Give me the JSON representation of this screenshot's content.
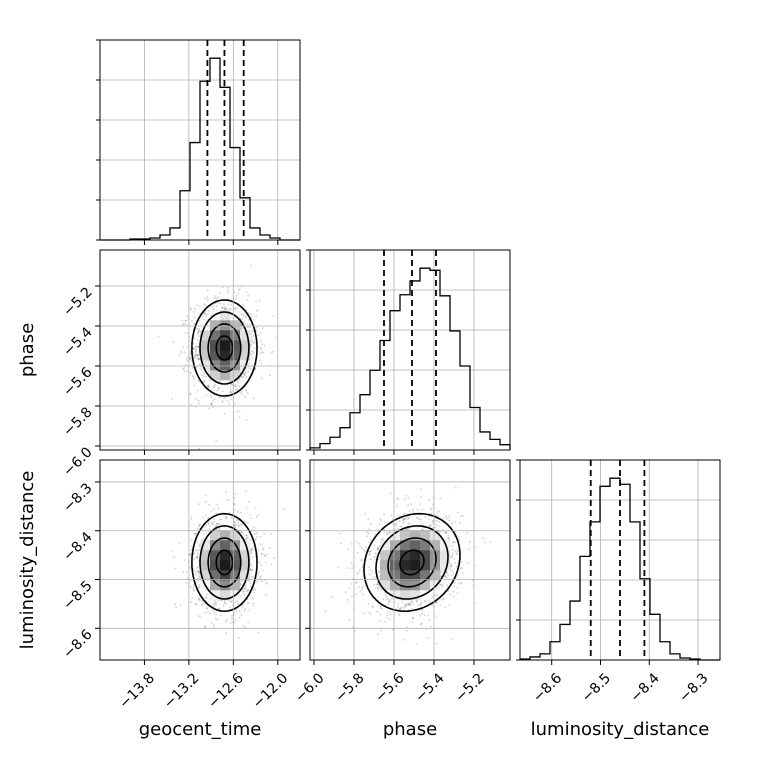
{
  "chart_data": {
    "type": "corner",
    "parameters": [
      "geocent_time",
      "phase",
      "luminosity_distance"
    ],
    "axes": {
      "geocent_time": {
        "label": "geocent_time",
        "range": [
          -14.4,
          -11.7
        ],
        "ticks": [
          -13.8,
          -13.2,
          -12.6,
          -12.0
        ],
        "tick_labels": [
          "−13.8",
          "−13.2",
          "−12.6",
          "−12.0"
        ]
      },
      "phase": {
        "label": "phase",
        "range": [
          -6.02,
          -5.02
        ],
        "ticks": [
          -6.0,
          -5.8,
          -5.6,
          -5.4,
          -5.2
        ],
        "tick_labels": [
          "−6.0",
          "−5.8",
          "−5.6",
          "−5.4",
          "−5.2"
        ]
      },
      "luminosity_distance": {
        "label": "luminosity_distance",
        "range": [
          -8.665,
          -8.255
        ],
        "ticks": [
          -8.6,
          -8.5,
          -8.4,
          -8.3
        ],
        "tick_labels": [
          "−8.6",
          "−8.5",
          "−8.4",
          "−8.3"
        ]
      }
    },
    "marginals": [
      {
        "parameter": "geocent_time",
        "quantiles": [
          -12.95,
          -12.72,
          -12.46
        ],
        "bin_edges": [
          -14.4,
          -14.265,
          -14.13,
          -13.995,
          -13.86,
          -13.725,
          -13.59,
          -13.455,
          -13.32,
          -13.185,
          -13.05,
          -12.915,
          -12.78,
          -12.645,
          -12.51,
          -12.375,
          -12.24,
          -12.105,
          -11.97,
          -11.835,
          -11.7
        ],
        "counts": [
          0,
          0,
          0,
          1,
          1,
          2,
          5,
          12,
          49,
          97,
          158,
          181,
          152,
          92,
          42,
          12,
          5,
          2,
          0,
          0
        ]
      },
      {
        "parameter": "phase",
        "quantiles": [
          -5.65,
          -5.51,
          -5.39
        ],
        "bin_edges": [
          -6.02,
          -5.97,
          -5.92,
          -5.87,
          -5.82,
          -5.77,
          -5.72,
          -5.67,
          -5.62,
          -5.57,
          -5.52,
          -5.47,
          -5.42,
          -5.37,
          -5.32,
          -5.27,
          -5.22,
          -5.17,
          -5.12,
          -5.07,
          -5.02
        ],
        "counts": [
          2,
          6,
          12,
          21,
          35,
          52,
          75,
          103,
          131,
          146,
          159,
          171,
          169,
          145,
          112,
          79,
          40,
          17,
          10,
          5
        ]
      },
      {
        "parameter": "luminosity_distance",
        "quantiles": [
          -8.52,
          -8.46,
          -8.41
        ],
        "bin_edges": [
          -8.665,
          -8.6445,
          -8.624,
          -8.6035,
          -8.583,
          -8.5625,
          -8.542,
          -8.5215,
          -8.501,
          -8.4805,
          -8.46,
          -8.4395,
          -8.419,
          -8.3985,
          -8.378,
          -8.3575,
          -8.337,
          -8.3165,
          -8.296,
          -8.2755,
          -8.255
        ],
        "counts": [
          1,
          3,
          6,
          18,
          35,
          58,
          102,
          136,
          171,
          179,
          173,
          136,
          80,
          45,
          18,
          6,
          2,
          1,
          0,
          0
        ]
      }
    ],
    "pairs": [
      {
        "x": "geocent_time",
        "y": "phase",
        "mean": [
          -12.72,
          -5.51
        ],
        "std": [
          0.22,
          0.12
        ],
        "corr": 0.0
      },
      {
        "x": "geocent_time",
        "y": "luminosity_distance",
        "mean": [
          -12.72,
          -8.465
        ],
        "std": [
          0.22,
          0.05
        ],
        "corr": 0.0
      },
      {
        "x": "phase",
        "y": "luminosity_distance",
        "mean": [
          -5.51,
          -8.465
        ],
        "std": [
          0.12,
          0.05
        ],
        "corr": 0.15
      }
    ],
    "contour_levels_sigma": [
      0.5,
      1.0,
      1.5,
      2.0
    ],
    "grid": true,
    "colors": {
      "line": "#000000",
      "grid": "#b0b0b0",
      "points": "#000000"
    }
  }
}
